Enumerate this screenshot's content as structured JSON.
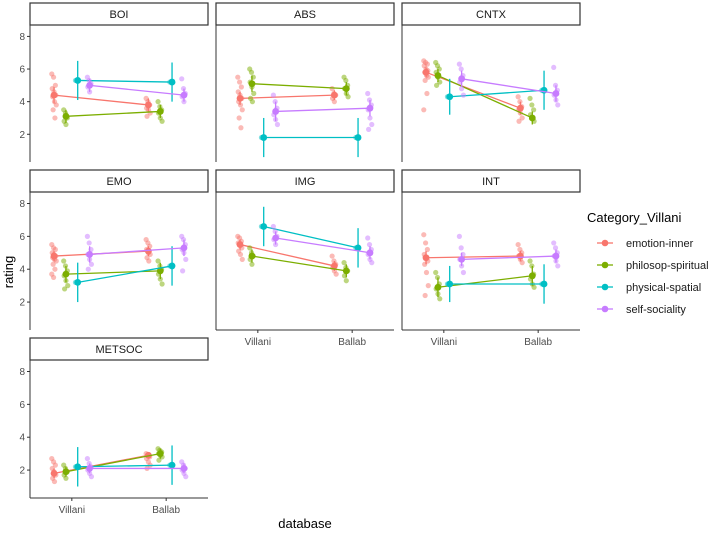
{
  "chart_data": {
    "type": "scatter",
    "xlabel": "database",
    "ylabel": "rating",
    "x_categories": [
      "Villani",
      "Ballab"
    ],
    "y_ticks": [
      2,
      4,
      6,
      8
    ],
    "ylim": [
      0.3,
      8.7
    ],
    "legend": {
      "title": "Category_Villani",
      "position": "right",
      "entries": [
        {
          "name": "emotion-inner",
          "color": "#F8766D"
        },
        {
          "name": "philosop-spiritual",
          "color": "#7CAE00"
        },
        {
          "name": "physical-spatial",
          "color": "#00BFC4"
        },
        {
          "name": "self-sociality",
          "color": "#C77CFF"
        }
      ]
    },
    "panels": [
      {
        "name": "BOI",
        "series": [
          {
            "name": "emotion-inner",
            "values": [
              4.4,
              3.8
            ],
            "ci": [
              [
                3.9,
                4.9
              ],
              [
                3.4,
                4.2
              ]
            ],
            "points": [
              [
                5.7,
                5.5,
                5.0,
                4.8,
                4.6,
                4.4,
                4.3,
                4.0,
                3.8,
                3.5,
                3.0
              ],
              [
                4.2,
                4.0,
                3.8,
                3.6,
                3.5,
                3.3,
                3.1
              ]
            ]
          },
          {
            "name": "philosop-spiritual",
            "values": [
              3.1,
              3.4
            ],
            "ci": [
              [
                2.7,
                3.5
              ],
              [
                3.0,
                3.8
              ]
            ],
            "points": [
              [
                3.5,
                3.3,
                3.0,
                2.8,
                2.6
              ],
              [
                4.0,
                3.7,
                3.5,
                3.3,
                3.0,
                2.8
              ]
            ]
          },
          {
            "name": "physical-spatial",
            "values": [
              5.3,
              5.2
            ],
            "ci": [
              [
                4.1,
                6.5
              ],
              [
                4.0,
                6.4
              ]
            ],
            "points": [
              [
                5.3
              ],
              [
                5.2
              ]
            ]
          },
          {
            "name": "self-sociality",
            "values": [
              5.0,
              4.4
            ],
            "ci": [
              [
                4.6,
                5.4
              ],
              [
                4.0,
                4.8
              ]
            ],
            "points": [
              [
                5.5,
                5.3,
                5.1,
                4.9,
                4.6
              ],
              [
                5.4,
                4.8,
                4.5,
                4.3,
                4.0
              ]
            ]
          }
        ]
      },
      {
        "name": "ABS",
        "series": [
          {
            "name": "emotion-inner",
            "values": [
              4.2,
              4.4
            ],
            "ci": [
              [
                3.8,
                4.6
              ],
              [
                4.1,
                4.7
              ]
            ],
            "points": [
              [
                5.5,
                5.2,
                4.9,
                4.6,
                4.4,
                4.2,
                4.0,
                3.8,
                3.5,
                3.0,
                2.4
              ],
              [
                4.8,
                4.5,
                4.4,
                4.2,
                4.0
              ]
            ]
          },
          {
            "name": "philosop-spiritual",
            "values": [
              5.1,
              4.8
            ],
            "ci": [
              [
                4.6,
                5.6
              ],
              [
                4.4,
                5.2
              ]
            ],
            "points": [
              [
                6.0,
                5.8,
                5.5,
                5.2,
                4.9,
                4.5,
                4.2,
                4.0
              ],
              [
                5.5,
                5.3,
                5.0,
                4.8,
                4.5,
                4.3
              ]
            ]
          },
          {
            "name": "physical-spatial",
            "values": [
              1.8,
              1.8
            ],
            "ci": [
              [
                0.6,
                3.0
              ],
              [
                0.6,
                3.0
              ]
            ],
            "points": [
              [
                1.8
              ],
              [
                1.8
              ]
            ]
          },
          {
            "name": "self-sociality",
            "values": [
              3.4,
              3.6
            ],
            "ci": [
              [
                2.8,
                4.0
              ],
              [
                3.1,
                4.1
              ]
            ],
            "points": [
              [
                4.4,
                4.0,
                3.6,
                3.2,
                2.9,
                2.6
              ],
              [
                4.5,
                4.1,
                3.8,
                3.5,
                3.0,
                2.6,
                2.3
              ]
            ]
          }
        ]
      },
      {
        "name": "CNTX",
        "series": [
          {
            "name": "emotion-inner",
            "values": [
              5.8,
              3.6
            ],
            "ci": [
              [
                5.5,
                6.1
              ],
              [
                3.2,
                4.0
              ]
            ],
            "points": [
              [
                6.5,
                6.4,
                6.3,
                6.2,
                6.0,
                5.9,
                5.8,
                5.6,
                5.5,
                5.3,
                4.5,
                3.5
              ],
              [
                4.3,
                4.0,
                3.7,
                3.5,
                3.3,
                3.0,
                2.8
              ]
            ]
          },
          {
            "name": "philosop-spiritual",
            "values": [
              5.6,
              3.0
            ],
            "ci": [
              [
                5.2,
                6.0
              ],
              [
                2.6,
                3.4
              ]
            ],
            "points": [
              [
                6.4,
                6.2,
                6.0,
                5.8,
                5.5,
                5.2,
                5.0
              ],
              [
                4.2,
                3.8,
                3.5,
                3.2,
                3.0,
                2.8
              ]
            ]
          },
          {
            "name": "physical-spatial",
            "values": [
              4.3,
              4.7
            ],
            "ci": [
              [
                3.2,
                5.4
              ],
              [
                3.5,
                5.9
              ]
            ],
            "points": [
              [
                4.3
              ],
              [
                4.7
              ]
            ]
          },
          {
            "name": "self-sociality",
            "values": [
              5.4,
              4.5
            ],
            "ci": [
              [
                4.9,
                5.9
              ],
              [
                4.0,
                5.0
              ]
            ],
            "points": [
              [
                6.3,
                6.0,
                5.6,
                5.2,
                4.8,
                4.4
              ],
              [
                6.1,
                5.0,
                4.7,
                4.4,
                4.1,
                3.8
              ]
            ]
          }
        ]
      },
      {
        "name": "EMO",
        "series": [
          {
            "name": "emotion-inner",
            "values": [
              4.8,
              5.1
            ],
            "ci": [
              [
                4.5,
                5.1
              ],
              [
                4.8,
                5.4
              ]
            ],
            "points": [
              [
                5.5,
                5.3,
                5.2,
                5.0,
                4.9,
                4.8,
                4.7,
                4.6,
                4.5,
                4.3,
                4.0,
                3.7,
                3.5
              ],
              [
                5.8,
                5.6,
                5.4,
                5.2,
                5.0,
                4.9,
                4.7,
                4.5
              ]
            ]
          },
          {
            "name": "philosop-spiritual",
            "values": [
              3.7,
              3.9
            ],
            "ci": [
              [
                3.2,
                4.2
              ],
              [
                3.4,
                4.4
              ]
            ],
            "points": [
              [
                4.5,
                4.2,
                3.9,
                3.6,
                3.3,
                3.0,
                2.8
              ],
              [
                4.5,
                4.2,
                4.0,
                3.7,
                3.4,
                3.1
              ]
            ]
          },
          {
            "name": "physical-spatial",
            "values": [
              3.2,
              4.2
            ],
            "ci": [
              [
                2.0,
                4.4
              ],
              [
                3.0,
                5.4
              ]
            ],
            "points": [
              [
                3.2
              ],
              [
                4.2
              ]
            ]
          },
          {
            "name": "self-sociality",
            "values": [
              4.9,
              5.3
            ],
            "ci": [
              [
                4.4,
                5.4
              ],
              [
                4.8,
                5.8
              ]
            ],
            "points": [
              [
                6.0,
                5.6,
                5.2,
                4.9,
                4.6,
                4.3,
                4.0
              ],
              [
                6.0,
                5.8,
                5.5,
                5.2,
                5.0,
                4.6,
                3.9
              ]
            ]
          }
        ]
      },
      {
        "name": "IMG",
        "series": [
          {
            "name": "emotion-inner",
            "values": [
              5.5,
              4.2
            ],
            "ci": [
              [
                5.2,
                5.8
              ],
              [
                3.9,
                4.5
              ]
            ],
            "points": [
              [
                6.0,
                5.9,
                5.7,
                5.6,
                5.5,
                5.3,
                5.1,
                4.9,
                4.6
              ],
              [
                4.8,
                4.5,
                4.3,
                4.1,
                3.9,
                3.7
              ]
            ]
          },
          {
            "name": "philosop-spiritual",
            "values": [
              4.8,
              3.9
            ],
            "ci": [
              [
                4.4,
                5.2
              ],
              [
                3.5,
                4.3
              ]
            ],
            "points": [
              [
                5.3,
                5.0,
                4.8,
                4.6,
                4.3
              ],
              [
                4.4,
                4.1,
                3.9,
                3.6,
                3.3
              ]
            ]
          },
          {
            "name": "physical-spatial",
            "values": [
              6.6,
              5.3
            ],
            "ci": [
              [
                5.4,
                7.8
              ],
              [
                4.1,
                6.5
              ]
            ],
            "points": [
              [
                6.6
              ],
              [
                5.3
              ]
            ]
          },
          {
            "name": "self-sociality",
            "values": [
              5.9,
              5.0
            ],
            "ci": [
              [
                5.5,
                6.3
              ],
              [
                4.6,
                5.4
              ]
            ],
            "points": [
              [
                6.6,
                6.3,
                6.0,
                5.8,
                5.5
              ],
              [
                5.9,
                5.5,
                5.2,
                4.9,
                4.6,
                4.4
              ]
            ]
          }
        ]
      },
      {
        "name": "INT",
        "series": [
          {
            "name": "emotion-inner",
            "values": [
              4.7,
              4.8
            ],
            "ci": [
              [
                4.3,
                5.1
              ],
              [
                4.5,
                5.1
              ]
            ],
            "points": [
              [
                6.1,
                5.6,
                5.2,
                4.9,
                4.7,
                4.5,
                4.3,
                3.8,
                3.0,
                2.4
              ],
              [
                5.5,
                5.2,
                5.0,
                4.8,
                4.6,
                4.4
              ]
            ]
          },
          {
            "name": "philosop-spiritual",
            "values": [
              2.9,
              3.6
            ],
            "ci": [
              [
                2.3,
                3.5
              ],
              [
                3.0,
                4.2
              ]
            ],
            "points": [
              [
                3.8,
                3.5,
                3.1,
                2.8,
                2.5,
                2.2
              ],
              [
                4.5,
                4.2,
                3.7,
                3.4,
                3.1,
                2.9
              ]
            ]
          },
          {
            "name": "physical-spatial",
            "values": [
              3.1,
              3.1
            ],
            "ci": [
              [
                2.0,
                4.2
              ],
              [
                1.9,
                4.3
              ]
            ],
            "points": [
              [
                3.1
              ],
              [
                3.1
              ]
            ]
          },
          {
            "name": "self-sociality",
            "values": [
              4.6,
              4.8
            ],
            "ci": [
              [
                4.2,
                5.0
              ],
              [
                4.4,
                5.2
              ]
            ],
            "points": [
              [
                6.0,
                5.3,
                4.9,
                4.6,
                4.2,
                3.8
              ],
              [
                5.6,
                5.3,
                5.0,
                4.8,
                4.5,
                4.2
              ]
            ]
          }
        ]
      },
      {
        "name": "METSOC",
        "series": [
          {
            "name": "emotion-inner",
            "values": [
              1.8,
              2.9
            ],
            "ci": [
              [
                1.5,
                2.1
              ],
              [
                2.7,
                3.1
              ]
            ],
            "points": [
              [
                2.7,
                2.5,
                2.3,
                2.1,
                1.9,
                1.7,
                1.5,
                1.3
              ],
              [
                3.0,
                2.9,
                2.8,
                2.7,
                2.5,
                2.3,
                2.1
              ]
            ]
          },
          {
            "name": "philosop-spiritual",
            "values": [
              1.9,
              3.0
            ],
            "ci": [
              [
                1.6,
                2.2
              ],
              [
                2.7,
                3.3
              ]
            ],
            "points": [
              [
                2.3,
                2.1,
                1.9,
                1.7,
                1.5
              ],
              [
                3.3,
                3.2,
                3.1,
                3.0,
                2.9,
                2.8,
                2.6
              ]
            ]
          },
          {
            "name": "physical-spatial",
            "values": [
              2.2,
              2.3
            ],
            "ci": [
              [
                1.0,
                3.4
              ],
              [
                1.1,
                3.5
              ]
            ],
            "points": [
              [
                2.2
              ],
              [
                2.3
              ]
            ]
          },
          {
            "name": "self-sociality",
            "values": [
              2.1,
              2.1
            ],
            "ci": [
              [
                1.8,
                2.4
              ],
              [
                1.8,
                2.4
              ]
            ],
            "points": [
              [
                2.7,
                2.4,
                2.2,
                2.0,
                1.8,
                1.6
              ],
              [
                2.5,
                2.3,
                2.1,
                2.0,
                1.8,
                1.6
              ]
            ]
          }
        ]
      }
    ]
  }
}
